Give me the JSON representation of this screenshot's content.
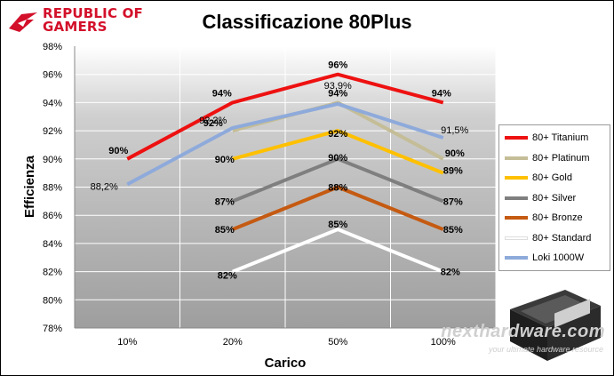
{
  "brand": {
    "line1": "REPUBLIC OF",
    "line2": "GAMERS",
    "logo_icon": "rog-eye-icon",
    "color": "#d3102a"
  },
  "watermark": {
    "main": "nexthardware.com",
    "sub": "your ultimate hardware resource"
  },
  "product_image": "psu-photo-icon",
  "chart_data": {
    "type": "line",
    "title": "Classificazione 80Plus",
    "xlabel": "Carico",
    "ylabel": "Efficienza",
    "categories": [
      "10%",
      "20%",
      "50%",
      "100%"
    ],
    "ylim": [
      78,
      98
    ],
    "yticks": [
      78,
      80,
      82,
      84,
      86,
      88,
      90,
      92,
      94,
      96,
      98
    ],
    "ytick_labels": [
      "78%",
      "80%",
      "82%",
      "84%",
      "86%",
      "88%",
      "90%",
      "92%",
      "94%",
      "96%",
      "98%"
    ],
    "grid": true,
    "legend_position": "right",
    "series": [
      {
        "name": "80+ Titanium",
        "color": "#ee1111",
        "values": [
          90,
          94,
          96,
          94
        ],
        "labels": [
          "90%",
          "94%",
          "96%",
          "94%"
        ]
      },
      {
        "name": "80+ Platinum",
        "color": "#c4bd97",
        "values": [
          null,
          92,
          94,
          90
        ],
        "labels": [
          "",
          "92%",
          "94%",
          "90%"
        ]
      },
      {
        "name": "80+ Gold",
        "color": "#ffc000",
        "values": [
          null,
          90,
          92,
          89
        ],
        "labels": [
          "",
          "90%",
          "92%",
          "89%"
        ]
      },
      {
        "name": "80+ Silver",
        "color": "#7f7f7f",
        "values": [
          null,
          87,
          90,
          87
        ],
        "labels": [
          "",
          "87%",
          "90%",
          "87%"
        ]
      },
      {
        "name": "80+ Bronze",
        "color": "#c55a11",
        "values": [
          null,
          85,
          88,
          85
        ],
        "labels": [
          "",
          "85%",
          "88%",
          "85%"
        ]
      },
      {
        "name": "80+ Standard",
        "color": "#ffffff",
        "values": [
          null,
          82,
          85,
          82
        ],
        "labels": [
          "",
          "82%",
          "85%",
          "82%"
        ]
      },
      {
        "name": "Loki 1000W",
        "color": "#8eaadb",
        "values": [
          88.2,
          92.2,
          93.9,
          91.5
        ],
        "labels": [
          "88,2%",
          "92,2%",
          "93,9%",
          "91,5%"
        ]
      }
    ]
  }
}
